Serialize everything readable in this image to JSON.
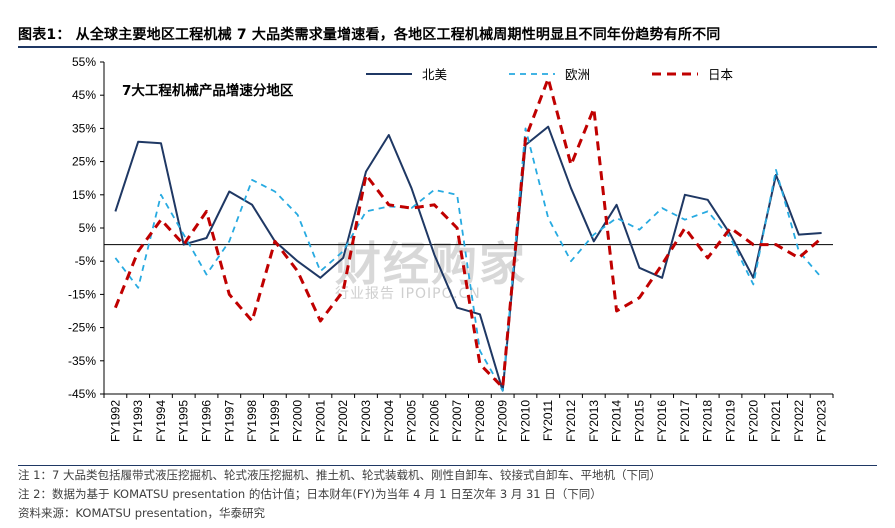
{
  "header": {
    "title": "图表1：  从全球主要地区工程机械 7 大品类需求量增速看，各地区工程机械周期性明显且不同年份趋势有所不同"
  },
  "chart_data": {
    "type": "line",
    "title": "7大工程机械产品增速分地区",
    "xlabel": "",
    "ylabel": "",
    "ylim": [
      -45,
      55
    ],
    "yticks": [
      "55%",
      "45%",
      "35%",
      "25%",
      "15%",
      "5%",
      "-5%",
      "-15%",
      "-25%",
      "-35%",
      "-45%"
    ],
    "ytick_values": [
      55,
      45,
      35,
      25,
      15,
      5,
      -5,
      -15,
      -25,
      -35,
      -45
    ],
    "categories": [
      "FY1992",
      "FY1993",
      "FY1994",
      "FY1995",
      "FY1996",
      "FY1997",
      "FY1998",
      "FY1999",
      "FY2000",
      "FY2001",
      "FY2002",
      "FY2003",
      "FY2004",
      "FY2005",
      "FY2006",
      "FY2007",
      "FY2008",
      "FY2009",
      "FY2010",
      "FY2011",
      "FY2012",
      "FY2013",
      "FY2014",
      "FY2015",
      "FY2016",
      "FY2017",
      "FY2018",
      "FY2019",
      "FY2020",
      "FY2021",
      "FY2022",
      "FY2023"
    ],
    "legend_position": "top",
    "grid": false,
    "series": [
      {
        "name": "北美",
        "color": "#1f3864",
        "style": "solid",
        "values": [
          10,
          31,
          30.5,
          0,
          2,
          16,
          12,
          1,
          -5,
          -10,
          -4,
          22,
          33,
          17,
          -3,
          -19,
          -21,
          -44,
          30,
          35.5,
          17,
          1,
          12,
          -7,
          -10,
          15,
          13.5,
          3,
          -10,
          21,
          3,
          3.5
        ]
      },
      {
        "name": "欧洲",
        "color": "#27aae1",
        "style": "dash",
        "values": [
          -4,
          -13,
          15,
          3,
          -9,
          1,
          19.5,
          16,
          9,
          -8,
          -2,
          10,
          11.5,
          11,
          16.5,
          15,
          -32,
          -44,
          35,
          8,
          -5,
          3,
          8,
          4.5,
          11,
          7.5,
          10,
          2,
          -12,
          22.5,
          -2,
          -10
        ]
      },
      {
        "name": "日本",
        "color": "#c00000",
        "style": "dash",
        "values": [
          -19,
          -2,
          7.5,
          0,
          10,
          -15,
          -23,
          1,
          -8,
          -23,
          -14,
          21,
          12,
          11,
          12,
          5,
          -36,
          -43,
          32,
          50,
          24,
          41,
          -20,
          -16,
          -6,
          5,
          -4,
          5,
          0,
          0,
          -4,
          2
        ]
      }
    ]
  },
  "watermark": {
    "main": "财经购家",
    "sub": "行业报告 IPOIPO.CN"
  },
  "footnotes": {
    "note1": "注 1：7 大品类包括履带式液压挖掘机、轮式液压挖掘机、推土机、轮式装载机、刚性自卸车、铰接式自卸车、平地机（下同）",
    "note2": "注 2：数据为基于 KOMATSU presentation 的估计值；日本财年(FY)为当年 4 月 1 日至次年 3 月 31 日（下同）",
    "source": "资料来源：KOMATSU presentation，华泰研究"
  }
}
